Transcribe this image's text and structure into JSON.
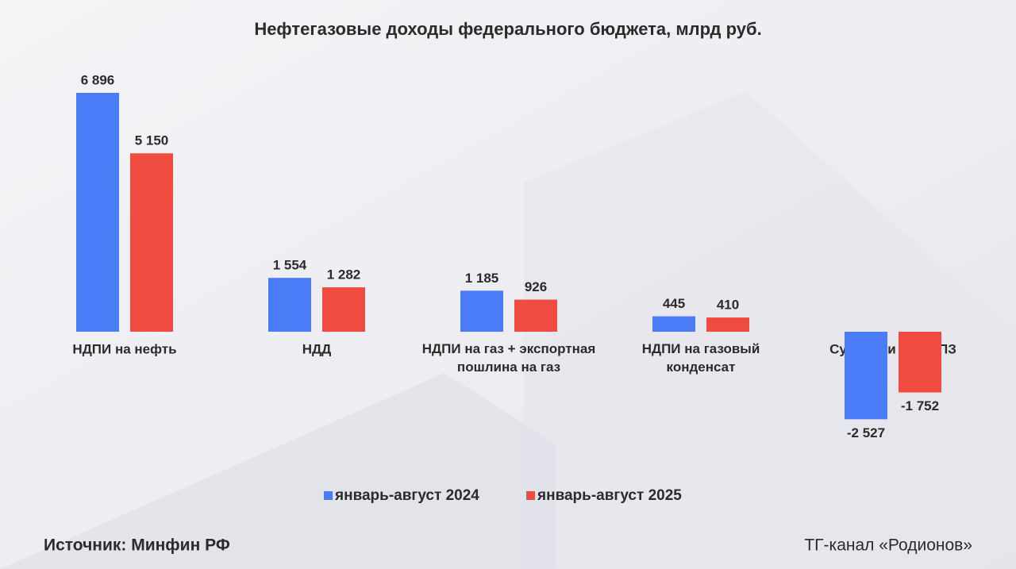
{
  "chart_data": {
    "type": "bar",
    "title": "Нефтегазовые доходы федерального бюджета, млрд руб.",
    "categories": [
      "НДПИ на нефть",
      "НДД",
      "НДПИ на газ + экспортная\nпошлина на газ",
      "НДПИ на газовый\nконденсат",
      "Субсидии для НПЗ"
    ],
    "series": [
      {
        "name": "январь-август 2024",
        "color": "#4a7cf7",
        "values": [
          6896,
          1554,
          1185,
          445,
          -2527
        ],
        "value_labels": [
          "6 896",
          "1 554",
          "1 185",
          "445",
          "-2 527"
        ]
      },
      {
        "name": "январь-август 2025",
        "color": "#ef4b3f",
        "values": [
          5150,
          1282,
          926,
          410,
          -1752
        ],
        "value_labels": [
          "5 150",
          "1 282",
          "926",
          "410",
          "-1 752"
        ]
      }
    ],
    "source": "Источник: Минфин РФ",
    "credit": "ТГ-канал «Родионов»"
  }
}
